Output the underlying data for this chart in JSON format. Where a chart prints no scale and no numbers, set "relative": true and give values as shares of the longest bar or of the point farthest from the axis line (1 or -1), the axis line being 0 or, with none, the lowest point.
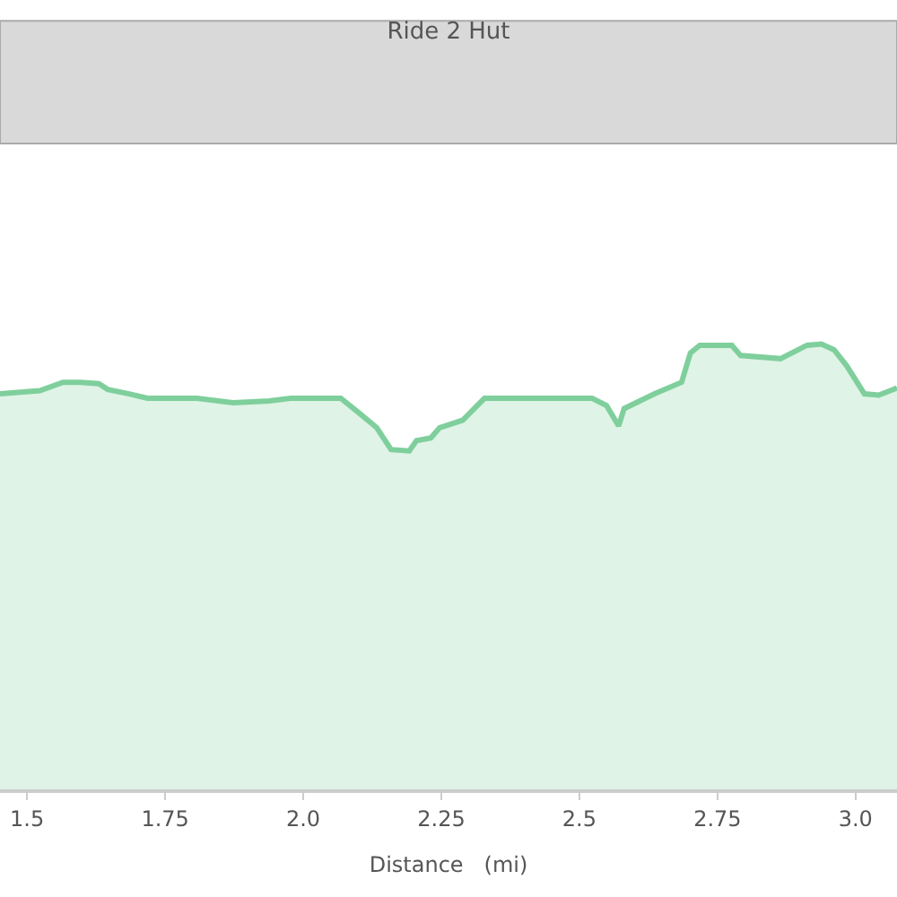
{
  "chart_data": {
    "type": "area",
    "title": "Ride 2 Hut",
    "xlabel": "Distance   (mi)",
    "relative": true,
    "xlim": [
      1.451,
      3.075
    ],
    "xticks": [
      1.5,
      1.75,
      {
        "value": 2.0,
        "label": "2.0"
      },
      2.25,
      2.5,
      2.75,
      {
        "value": 3.0,
        "label": "3.0"
      }
    ],
    "x": [
      1.451,
      1.523,
      1.565,
      1.597,
      1.63,
      1.646,
      1.685,
      1.718,
      1.808,
      1.873,
      1.938,
      1.977,
      2.068,
      2.101,
      2.133,
      2.159,
      2.192,
      2.205,
      2.231,
      2.247,
      2.289,
      2.328,
      2.523,
      2.549,
      2.571,
      2.581,
      2.636,
      2.685,
      2.701,
      2.718,
      2.776,
      2.792,
      2.864,
      2.912,
      2.938,
      2.961,
      2.984,
      3.016,
      3.042,
      3.075
    ],
    "series": [
      {
        "color": "#7fcf9c",
        "values": [
          0.888,
          0.895,
          0.914,
          0.914,
          0.911,
          0.898,
          0.888,
          0.878,
          0.878,
          0.868,
          0.872,
          0.878,
          0.878,
          0.845,
          0.812,
          0.763,
          0.76,
          0.783,
          0.789,
          0.812,
          0.829,
          0.878,
          0.878,
          0.862,
          0.816,
          0.855,
          0.888,
          0.914,
          0.98,
          0.997,
          0.997,
          0.974,
          0.967,
          0.997,
          1.0,
          0.987,
          0.951,
          0.888,
          0.885,
          0.901
        ]
      }
    ]
  }
}
